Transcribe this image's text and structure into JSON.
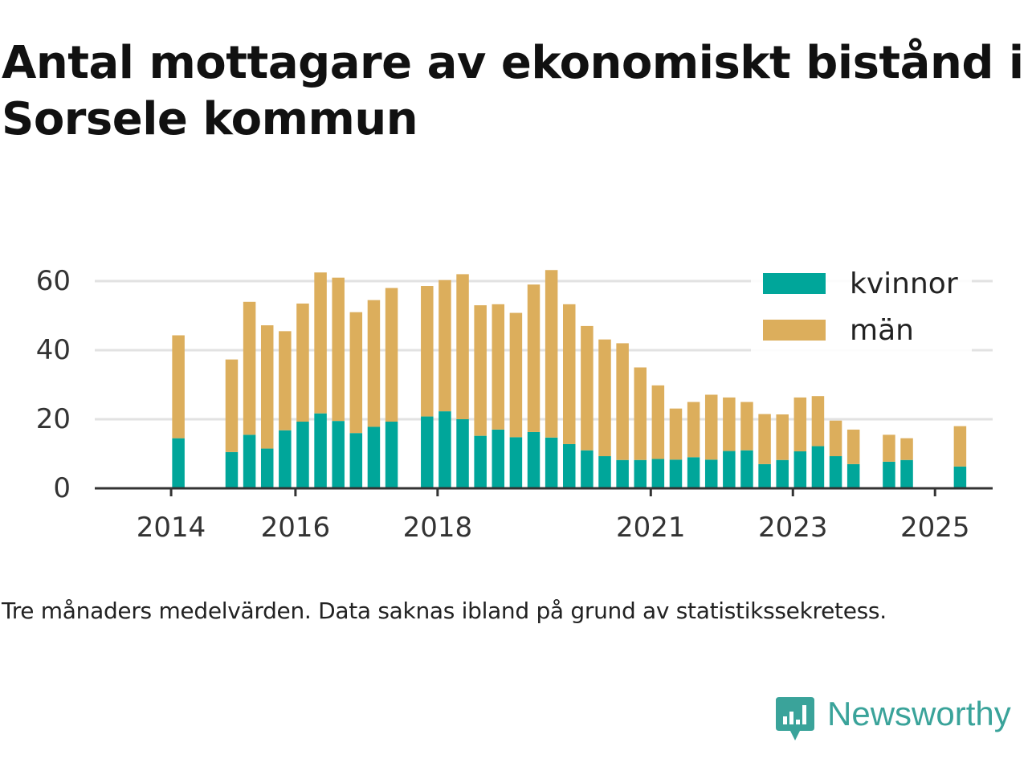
{
  "title": "Antal mottagare av ekonomiskt bistånd i Sorsele kommun",
  "note": "Tre månaders medelvärden. Data saknas ibland på grund av statistikssekretess.",
  "brand": {
    "name": "Newsworthy",
    "icon": "newsworthy-logo-icon",
    "color": "#3aa39a"
  },
  "chart_data": {
    "type": "bar",
    "stacked": true,
    "title": "",
    "xlabel": "",
    "ylabel": "",
    "ylim": [
      0,
      70
    ],
    "yticks": [
      0,
      20,
      40,
      60
    ],
    "grid": true,
    "legend_position": "top-right",
    "x_ticks": [
      {
        "label": "2014",
        "quarter": "2014-Q2"
      },
      {
        "label": "2016",
        "quarter": "2016-Q1"
      },
      {
        "label": "2018",
        "quarter": "2018-Q1"
      },
      {
        "label": "2021",
        "quarter": "2021-Q1"
      },
      {
        "label": "2023",
        "quarter": "2023-Q1"
      },
      {
        "label": "2025",
        "quarter": "2025-Q1"
      }
    ],
    "categories": [
      "2014-Q1",
      "2014-Q2",
      "2014-Q3",
      "2014-Q4",
      "2015-Q1",
      "2015-Q2",
      "2015-Q3",
      "2015-Q4",
      "2016-Q1",
      "2016-Q2",
      "2016-Q3",
      "2016-Q4",
      "2017-Q1",
      "2017-Q2",
      "2017-Q3",
      "2017-Q4",
      "2018-Q1",
      "2018-Q2",
      "2018-Q3",
      "2018-Q4",
      "2019-Q1",
      "2019-Q2",
      "2019-Q3",
      "2019-Q4",
      "2020-Q1",
      "2020-Q2",
      "2020-Q3",
      "2020-Q4",
      "2021-Q1",
      "2021-Q2",
      "2021-Q3",
      "2021-Q4",
      "2022-Q1",
      "2022-Q2",
      "2022-Q3",
      "2022-Q4",
      "2023-Q1",
      "2023-Q2",
      "2023-Q3",
      "2023-Q4",
      "2024-Q1",
      "2024-Q2",
      "2024-Q3",
      "2024-Q4",
      "2025-Q1",
      "2025-Q2"
    ],
    "series": [
      {
        "name": "kvinnor",
        "color": "#00a69a",
        "values": [
          null,
          14.5,
          null,
          null,
          10.5,
          15.5,
          11.5,
          16.8,
          19.3,
          21.7,
          19.5,
          16,
          17.8,
          19.3,
          null,
          20.8,
          22.3,
          20,
          15.2,
          17,
          14.8,
          16.3,
          14.7,
          12.8,
          11,
          9.3,
          8.2,
          8.2,
          8.5,
          8.3,
          9,
          8.3,
          10.8,
          11,
          7,
          8.2,
          10.7,
          12.2,
          9.3,
          7,
          null,
          7.7,
          8.2,
          null,
          null,
          6.3
        ]
      },
      {
        "name": "män",
        "color": "#dcae5c",
        "values": [
          null,
          29.8,
          null,
          null,
          26.8,
          38.5,
          35.7,
          28.7,
          34.2,
          40.8,
          41.5,
          35,
          36.7,
          38.7,
          null,
          37.8,
          38,
          42,
          37.8,
          36.3,
          36,
          42.7,
          48.5,
          40.5,
          36,
          33.8,
          33.8,
          26.8,
          21.3,
          14.8,
          16,
          18.8,
          15.5,
          14,
          14.5,
          13.2,
          15.6,
          14.5,
          10.3,
          10,
          null,
          7.8,
          6.3,
          null,
          null,
          11.7
        ]
      }
    ]
  }
}
